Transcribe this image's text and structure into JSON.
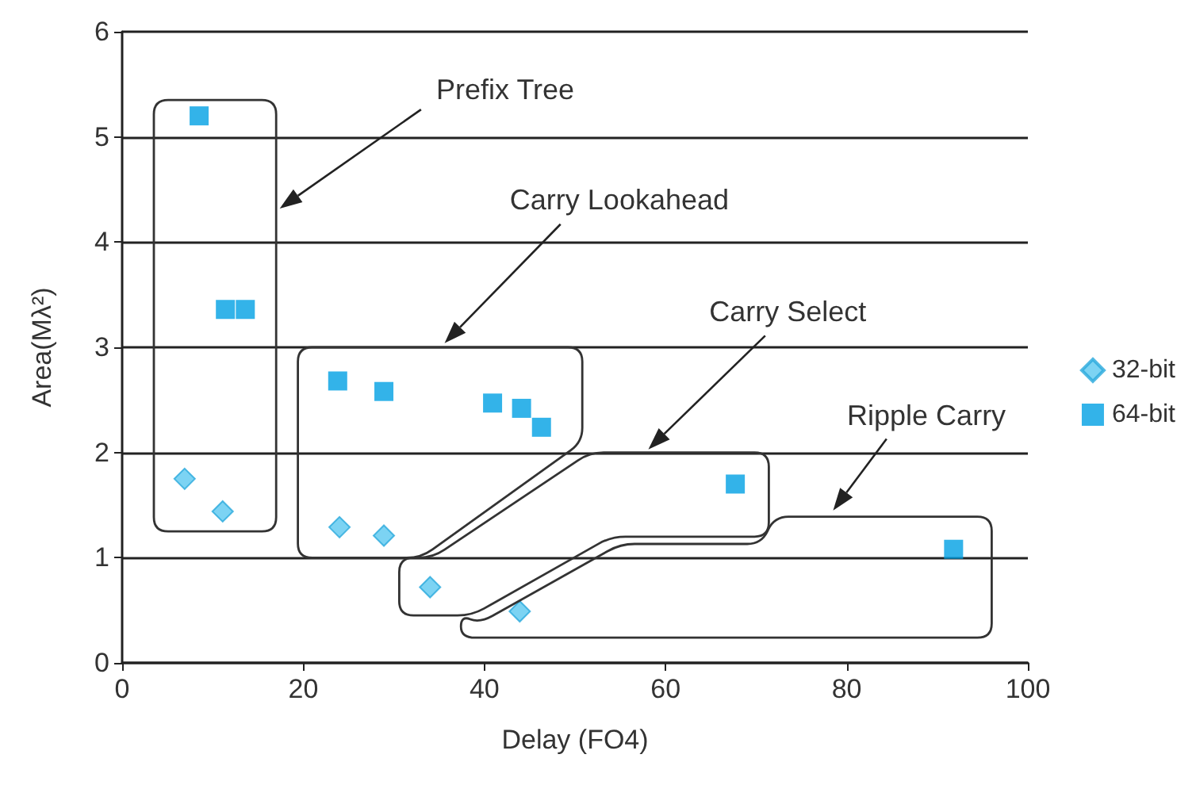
{
  "chart_data": {
    "type": "scatter",
    "xlabel": "Delay (FO4)",
    "ylabel": "Area(Mλ²)",
    "xlim": [
      0,
      100
    ],
    "xticks": [
      0,
      20,
      40,
      60,
      80,
      100
    ],
    "ylim": [
      0,
      6
    ],
    "yticks": [
      0,
      1,
      2,
      3,
      4,
      5,
      6
    ],
    "grid": "y",
    "legend": "right",
    "series": [
      {
        "name": "32-bit",
        "color": "#5bc8f0",
        "marker": "diamond",
        "x": [
          6.9,
          11.1,
          24,
          28.9,
          34,
          43.9
        ],
        "values": [
          1.75,
          1.44,
          1.29,
          1.21,
          0.72,
          0.49
        ]
      },
      {
        "name": "64-bit",
        "color": "#00a0e3",
        "marker": "square",
        "x": [
          8.5,
          11.4,
          13.6,
          23.8,
          28.9,
          40.9,
          44.1,
          46.3,
          67.7,
          91.8
        ],
        "values": [
          5.2,
          3.36,
          3.36,
          2.68,
          2.58,
          2.47,
          2.42,
          2.24,
          1.7,
          1.08
        ]
      }
    ],
    "annotations": [
      "Prefix Tree",
      "Carry Lookahead",
      "Carry Select",
      "Ripple Carry"
    ]
  }
}
